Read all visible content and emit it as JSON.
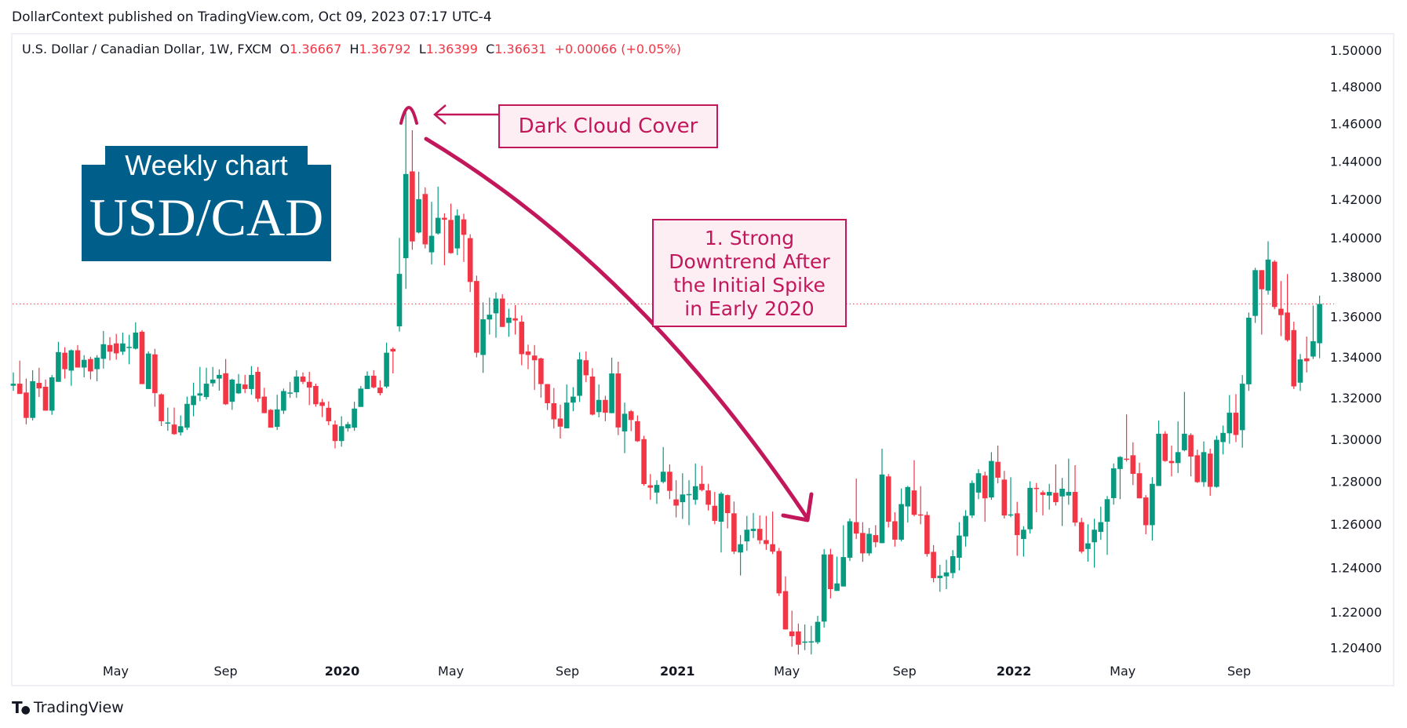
{
  "published": "DollarContext published on TradingView.com, Oct 09, 2023 07:17 UTC-4",
  "legend": {
    "symbol": "U.S. Dollar / Canadian Dollar, 1W, FXCM",
    "o_label": "O",
    "o": "1.36667",
    "h_label": "H",
    "h": "1.36792",
    "l_label": "L",
    "l": "1.36399",
    "c_label": "C",
    "c": "1.36631",
    "change": "+0.00066 (+0.05%)"
  },
  "badge": {
    "line1": "Weekly chart",
    "line2": "USD/CAD"
  },
  "annotations": {
    "pattern": "Dark Cloud Cover",
    "trend": [
      "1. Strong",
      "Downtrend After",
      "the Initial Spike",
      "in Early 2020"
    ]
  },
  "footer": {
    "logo": "TV",
    "brand": "TradingView"
  },
  "colors": {
    "up": "#089981",
    "down": "#f23645",
    "annotation": "#c2185b",
    "badge": "#005f8a"
  },
  "chart_data": {
    "type": "candlestick",
    "interval": "1W",
    "y_scale": "log",
    "ylim": [
      1.1975,
      1.505
    ],
    "grid": false,
    "last_price": 1.36631,
    "y_ticks": [
      "1.50000",
      "1.48000",
      "1.46000",
      "1.44000",
      "1.42000",
      "1.40000",
      "1.38000",
      "1.36000",
      "1.34000",
      "1.32000",
      "1.30000",
      "1.28000",
      "1.26000",
      "1.24000",
      "1.22000",
      "1.20400"
    ],
    "x_ticks": [
      "May",
      "Sep",
      "2020",
      "May",
      "Sep",
      "2021",
      "May",
      "Sep",
      "2022",
      "May",
      "Sep"
    ],
    "ohlc": [
      [
        1.3258,
        1.3323,
        1.3233,
        1.3268
      ],
      [
        1.3268,
        1.3381,
        1.3218,
        1.3218
      ],
      [
        1.3225,
        1.3293,
        1.3071,
        1.3102
      ],
      [
        1.3102,
        1.3334,
        1.309,
        1.328
      ],
      [
        1.3272,
        1.3346,
        1.3203,
        1.3245
      ],
      [
        1.3253,
        1.3288,
        1.3137,
        1.3137
      ],
      [
        1.3137,
        1.331,
        1.3117,
        1.3299
      ],
      [
        1.3277,
        1.3474,
        1.3277,
        1.3423
      ],
      [
        1.342,
        1.3447,
        1.3293,
        1.3339
      ],
      [
        1.3332,
        1.3436,
        1.3258,
        1.3432
      ],
      [
        1.3432,
        1.3458,
        1.3347,
        1.3347
      ],
      [
        1.3347,
        1.3408,
        1.3299,
        1.3385
      ],
      [
        1.3389,
        1.34,
        1.3289,
        1.3328
      ],
      [
        1.3339,
        1.3408,
        1.328,
        1.3396
      ],
      [
        1.339,
        1.3528,
        1.3342,
        1.3462
      ],
      [
        1.3458,
        1.3497,
        1.3382,
        1.3425
      ],
      [
        1.3466,
        1.3513,
        1.3386,
        1.3417
      ],
      [
        1.3425,
        1.352,
        1.3409,
        1.3466
      ],
      [
        1.3447,
        1.3509,
        1.3363,
        1.3449
      ],
      [
        1.344,
        1.3571,
        1.3436,
        1.352
      ],
      [
        1.3524,
        1.3532,
        1.3266,
        1.3266
      ],
      [
        1.3242,
        1.3427,
        1.3242,
        1.3416
      ],
      [
        1.3412,
        1.3439,
        1.3156,
        1.3222
      ],
      [
        1.3216,
        1.3221,
        1.3063,
        1.3086
      ],
      [
        1.3075,
        1.3152,
        1.304,
        1.308
      ],
      [
        1.307,
        1.3152,
        1.3021,
        1.3024
      ],
      [
        1.3032,
        1.3114,
        1.3017,
        1.3062
      ],
      [
        1.3055,
        1.3205,
        1.3044,
        1.317
      ],
      [
        1.3164,
        1.3273,
        1.311,
        1.3209
      ],
      [
        1.321,
        1.335,
        1.3183,
        1.3221
      ],
      [
        1.3203,
        1.3346,
        1.3191,
        1.3268
      ],
      [
        1.327,
        1.335,
        1.3254,
        1.3288
      ],
      [
        1.3293,
        1.3338,
        1.3234,
        1.3311
      ],
      [
        1.3319,
        1.3389,
        1.3164,
        1.3168
      ],
      [
        1.318,
        1.3292,
        1.3141,
        1.3288
      ],
      [
        1.3221,
        1.3315,
        1.3218,
        1.3268
      ],
      [
        1.3264,
        1.3311,
        1.3222,
        1.3242
      ],
      [
        1.3242,
        1.3354,
        1.3214,
        1.3311
      ],
      [
        1.3326,
        1.335,
        1.3179,
        1.3195
      ],
      [
        1.3205,
        1.3248,
        1.3125,
        1.3125
      ],
      [
        1.3141,
        1.3145,
        1.3055,
        1.3055
      ],
      [
        1.3059,
        1.3214,
        1.3044,
        1.3143
      ],
      [
        1.3137,
        1.3244,
        1.3121,
        1.3232
      ],
      [
        1.3223,
        1.3276,
        1.3199,
        1.3225
      ],
      [
        1.3226,
        1.3334,
        1.3199,
        1.3303
      ],
      [
        1.3303,
        1.3323,
        1.3266,
        1.3277
      ],
      [
        1.3277,
        1.3326,
        1.3164,
        1.3249
      ],
      [
        1.3257,
        1.3268,
        1.3156,
        1.3168
      ],
      [
        1.3178,
        1.3194,
        1.3106,
        1.316
      ],
      [
        1.3151,
        1.3182,
        1.3067,
        1.3086
      ],
      [
        1.307,
        1.309,
        1.2956,
        1.2991
      ],
      [
        1.2991,
        1.311,
        1.2964,
        1.3062
      ],
      [
        1.3052,
        1.3083,
        1.3036,
        1.3072
      ],
      [
        1.3055,
        1.318,
        1.304,
        1.3147
      ],
      [
        1.3155,
        1.3257,
        1.3156,
        1.3244
      ],
      [
        1.3242,
        1.3328,
        1.3242,
        1.3307
      ],
      [
        1.3307,
        1.3334,
        1.3245,
        1.325
      ],
      [
        1.3249,
        1.3284,
        1.3211,
        1.3222
      ],
      [
        1.3254,
        1.347,
        1.3246,
        1.342
      ],
      [
        1.3439,
        1.3447,
        1.3318,
        1.3426
      ],
      [
        1.3551,
        1.3999,
        1.3525,
        1.3815
      ],
      [
        1.3895,
        1.4665,
        1.3739,
        1.4332
      ],
      [
        1.4346,
        1.4565,
        1.3938,
        1.3981
      ],
      [
        1.4027,
        1.4344,
        1.4022,
        1.42
      ],
      [
        1.4227,
        1.4262,
        1.3945,
        1.3966
      ],
      [
        1.3925,
        1.4186,
        1.3863,
        1.401
      ],
      [
        1.4022,
        1.4266,
        1.4016,
        1.4103
      ],
      [
        1.4103,
        1.4126,
        1.3859,
        1.4093
      ],
      [
        1.4092,
        1.4177,
        1.3918,
        1.3921
      ],
      [
        1.3945,
        1.4147,
        1.3911,
        1.4115
      ],
      [
        1.4095,
        1.4124,
        1.3876,
        1.4015
      ],
      [
        1.3998,
        1.4018,
        1.3723,
        1.3774
      ],
      [
        1.3779,
        1.3806,
        1.3397,
        1.342
      ],
      [
        1.3409,
        1.3671,
        1.3321,
        1.3586
      ],
      [
        1.3585,
        1.3695,
        1.351,
        1.3609
      ],
      [
        1.3616,
        1.3721,
        1.3494,
        1.369
      ],
      [
        1.369,
        1.3712,
        1.3548,
        1.3548
      ],
      [
        1.3568,
        1.3639,
        1.3499,
        1.3594
      ],
      [
        1.3591,
        1.3657,
        1.351,
        1.358
      ],
      [
        1.3574,
        1.3605,
        1.3358,
        1.3413
      ],
      [
        1.3426,
        1.346,
        1.3339,
        1.3409
      ],
      [
        1.3406,
        1.3458,
        1.3238,
        1.3383
      ],
      [
        1.3392,
        1.3396,
        1.32,
        1.3266
      ],
      [
        1.3266,
        1.3266,
        1.314,
        1.3173
      ],
      [
        1.3173,
        1.3247,
        1.3051,
        1.3095
      ],
      [
        1.3099,
        1.3166,
        1.3003,
        1.306
      ],
      [
        1.3052,
        1.3264,
        1.3052,
        1.3176
      ],
      [
        1.3176,
        1.3251,
        1.3134,
        1.3205
      ],
      [
        1.3209,
        1.3422,
        1.3179,
        1.3387
      ],
      [
        1.3383,
        1.3426,
        1.3276,
        1.3309
      ],
      [
        1.3303,
        1.3344,
        1.3114,
        1.3118
      ],
      [
        1.313,
        1.3264,
        1.3105,
        1.3189
      ],
      [
        1.3189,
        1.3209,
        1.3086,
        1.3127
      ],
      [
        1.3125,
        1.3396,
        1.3125,
        1.3318
      ],
      [
        1.3318,
        1.3376,
        1.3019,
        1.3056
      ],
      [
        1.3037,
        1.3176,
        1.2933,
        1.3122
      ],
      [
        1.3134,
        1.314,
        1.3038,
        1.3092
      ],
      [
        1.3086,
        1.3114,
        1.2987,
        1.299
      ],
      [
        1.3,
        1.3016,
        1.2779,
        1.2787
      ],
      [
        1.2781,
        1.2834,
        1.2713,
        1.277
      ],
      [
        1.2747,
        1.2805,
        1.2694,
        1.2783
      ],
      [
        1.2797,
        1.2962,
        1.279,
        1.2845
      ],
      [
        1.2845,
        1.288,
        1.2716,
        1.2755
      ],
      [
        1.2715,
        1.2805,
        1.2631,
        1.2686
      ],
      [
        1.2702,
        1.2838,
        1.2624,
        1.2738
      ],
      [
        1.2736,
        1.2805,
        1.2595,
        1.274
      ],
      [
        1.2713,
        1.2884,
        1.269,
        1.2777
      ],
      [
        1.2788,
        1.2873,
        1.2753,
        1.2759
      ],
      [
        1.2757,
        1.2788,
        1.2663,
        1.269
      ],
      [
        1.2685,
        1.275,
        1.2599,
        1.2615
      ],
      [
        1.2611,
        1.275,
        1.2469,
        1.2742
      ],
      [
        1.2735,
        1.2738,
        1.258,
        1.2651
      ],
      [
        1.265,
        1.2705,
        1.2462,
        1.2473
      ],
      [
        1.2469,
        1.2549,
        1.2364,
        1.2507
      ],
      [
        1.252,
        1.2638,
        1.2477,
        1.2574
      ],
      [
        1.2568,
        1.2651,
        1.2535,
        1.2578
      ],
      [
        1.2578,
        1.264,
        1.2508,
        1.2525
      ],
      [
        1.2526,
        1.2638,
        1.2481,
        1.2508
      ],
      [
        1.2507,
        1.2658,
        1.2462,
        1.2473
      ],
      [
        1.2476,
        1.249,
        1.2271,
        1.2283
      ],
      [
        1.2293,
        1.236,
        1.2121,
        1.2121
      ],
      [
        1.2112,
        1.2205,
        1.2044,
        1.2091
      ],
      [
        1.2112,
        1.2147,
        1.201,
        1.2053
      ],
      [
        1.2064,
        1.2143,
        1.2029,
        1.2067
      ],
      [
        1.2063,
        1.2137,
        1.201,
        1.2068
      ],
      [
        1.2064,
        1.2182,
        1.2056,
        1.2155
      ],
      [
        1.2156,
        1.2485,
        1.2129,
        1.246
      ],
      [
        1.246,
        1.2486,
        1.226,
        1.2302
      ],
      [
        1.2294,
        1.245,
        1.2294,
        1.2328
      ],
      [
        1.2314,
        1.2595,
        1.2314,
        1.2448
      ],
      [
        1.2445,
        1.2626,
        1.243,
        1.2613
      ],
      [
        1.2609,
        1.2813,
        1.2531,
        1.2556
      ],
      [
        1.2559,
        1.2609,
        1.2426,
        1.2465
      ],
      [
        1.2465,
        1.2582,
        1.2454,
        1.2555
      ],
      [
        1.2549,
        1.2595,
        1.2493,
        1.2516
      ],
      [
        1.2512,
        1.2954,
        1.2512,
        1.2832
      ],
      [
        1.2823,
        1.2834,
        1.2584,
        1.2611
      ],
      [
        1.2613,
        1.2655,
        1.2496,
        1.2528
      ],
      [
        1.2528,
        1.2766,
        1.252,
        1.2693
      ],
      [
        1.2682,
        1.2778,
        1.2607,
        1.2773
      ],
      [
        1.2757,
        1.29,
        1.2636,
        1.2643
      ],
      [
        1.2645,
        1.2777,
        1.2599,
        1.264
      ],
      [
        1.2642,
        1.2658,
        1.245,
        1.2462
      ],
      [
        1.2472,
        1.2503,
        1.2333,
        1.2352
      ],
      [
        1.2352,
        1.2413,
        1.229,
        1.2363
      ],
      [
        1.236,
        1.2436,
        1.2302,
        1.2378
      ],
      [
        1.2375,
        1.248,
        1.2352,
        1.2452
      ],
      [
        1.2445,
        1.2609,
        1.2387,
        1.2547
      ],
      [
        1.2543,
        1.2665,
        1.2496,
        1.2638
      ],
      [
        1.264,
        1.2804,
        1.2628,
        1.2792
      ],
      [
        1.2747,
        1.2857,
        1.2716,
        1.2838
      ],
      [
        1.2827,
        1.2845,
        1.2611,
        1.272
      ],
      [
        1.2724,
        1.2938,
        1.2713,
        1.2896
      ],
      [
        1.2892,
        1.2969,
        1.279,
        1.2817
      ],
      [
        1.2808,
        1.2849,
        1.2626,
        1.264
      ],
      [
        1.264,
        1.2819,
        1.2632,
        1.2645
      ],
      [
        1.265,
        1.2704,
        1.2454,
        1.2549
      ],
      [
        1.2531,
        1.259,
        1.245,
        1.2574
      ],
      [
        1.2576,
        1.28,
        1.2556,
        1.2769
      ],
      [
        1.2769,
        1.2792,
        1.2655,
        1.2766
      ],
      [
        1.2748,
        1.2757,
        1.264,
        1.2736
      ],
      [
        1.2733,
        1.2788,
        1.2667,
        1.275
      ],
      [
        1.2746,
        1.288,
        1.2686,
        1.2702
      ],
      [
        1.2729,
        1.2816,
        1.2591,
        1.2765
      ],
      [
        1.2733,
        1.2907,
        1.269,
        1.275
      ],
      [
        1.275,
        1.2876,
        1.2591,
        1.2607
      ],
      [
        1.2609,
        1.2629,
        1.2465,
        1.2473
      ],
      [
        1.2485,
        1.2599,
        1.2427,
        1.2511
      ],
      [
        1.2516,
        1.2625,
        1.24,
        1.2574
      ],
      [
        1.2564,
        1.2681,
        1.2527,
        1.2609
      ],
      [
        1.2611,
        1.2731,
        1.2458,
        1.2716
      ],
      [
        1.2721,
        1.2884,
        1.269,
        1.2861
      ],
      [
        1.2858,
        1.2919,
        1.2716,
        1.2915
      ],
      [
        1.2907,
        1.3119,
        1.2893,
        1.2902
      ],
      [
        1.2923,
        1.2985,
        1.2782,
        1.2835
      ],
      [
        1.2838,
        1.2888,
        1.272,
        1.272
      ],
      [
        1.2724,
        1.2735,
        1.2553,
        1.2595
      ],
      [
        1.2595,
        1.2819,
        1.2524,
        1.2788
      ],
      [
        1.2778,
        1.3089,
        1.2778,
        1.3026
      ],
      [
        1.3026,
        1.3038,
        1.2892,
        1.2896
      ],
      [
        1.2896,
        1.2969,
        1.2823,
        1.2886
      ],
      [
        1.2886,
        1.3085,
        1.2839,
        1.2938
      ],
      [
        1.2947,
        1.3228,
        1.2942,
        1.3026
      ],
      [
        1.302,
        1.3028,
        1.2823,
        1.2917
      ],
      [
        1.2923,
        1.295,
        1.2792,
        1.2796
      ],
      [
        1.2796,
        1.2989,
        1.2774,
        1.2938
      ],
      [
        1.2931,
        1.2954,
        1.2732,
        1.2774
      ],
      [
        1.2774,
        1.3016,
        1.277,
        1.2997
      ],
      [
        1.2986,
        1.3065,
        1.2927,
        1.303
      ],
      [
        1.3028,
        1.3213,
        1.2978,
        1.3127
      ],
      [
        1.3127,
        1.3217,
        1.2986,
        1.302
      ],
      [
        1.3043,
        1.331,
        1.2959,
        1.3268
      ],
      [
        1.3265,
        1.362,
        1.3233,
        1.3594
      ],
      [
        1.3603,
        1.3846,
        1.3568,
        1.3834
      ],
      [
        1.3834,
        1.3834,
        1.351,
        1.3737
      ],
      [
        1.373,
        1.3982,
        1.371,
        1.3888
      ],
      [
        1.3877,
        1.3885,
        1.3637,
        1.3648
      ],
      [
        1.3639,
        1.3779,
        1.3502,
        1.3607
      ],
      [
        1.362,
        1.3814,
        1.3475,
        1.3482
      ],
      [
        1.3532,
        1.3574,
        1.3242,
        1.3255
      ],
      [
        1.3273,
        1.3414,
        1.3233,
        1.3387
      ],
      [
        1.3392,
        1.35,
        1.3323,
        1.3378
      ],
      [
        1.3401,
        1.3655,
        1.3389,
        1.3477
      ],
      [
        1.3467,
        1.3705,
        1.3393,
        1.3663
      ]
    ]
  }
}
